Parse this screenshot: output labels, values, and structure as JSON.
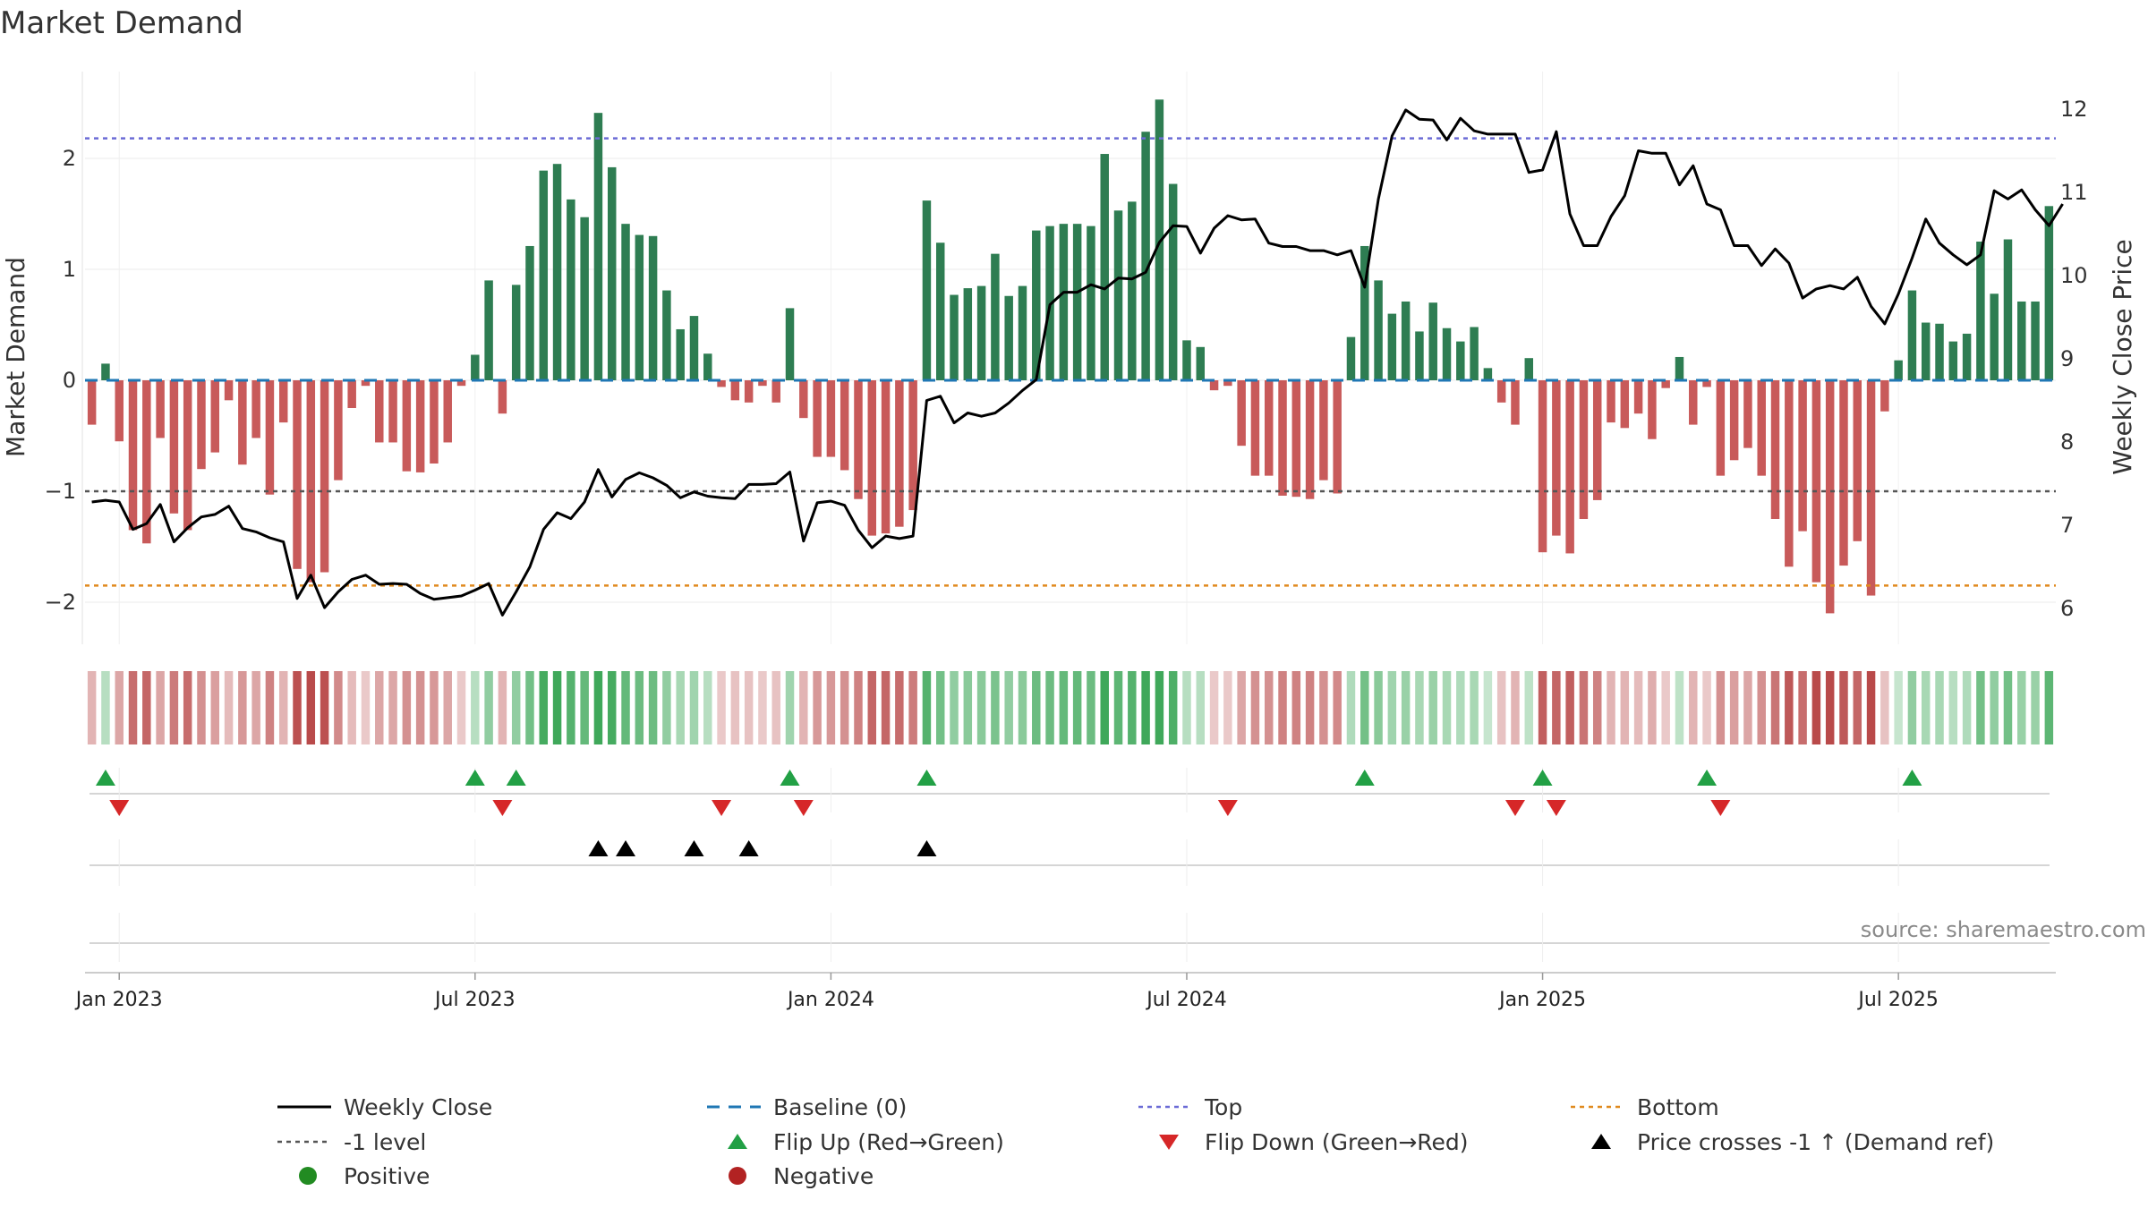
{
  "colors": {
    "positive_bar": "#2e7d52",
    "negative_bar": "#c85a5a",
    "close_line": "#000000",
    "baseline": "#1f77b4",
    "top_line": "#6b6bd6",
    "bottom_line": "#e08a1e",
    "minus1_line": "#555555",
    "flip_up": "#22a045",
    "flip_down": "#d62728",
    "cross_marker": "#000000",
    "legend_positive": "#228b22",
    "legend_negative": "#b22222"
  },
  "chart_data": {
    "type": "bar",
    "title": "Market Demand",
    "ylabel": "Market Demand",
    "ylabel_right": "Weekly Close Price",
    "ylim": [
      -2.4,
      2.85
    ],
    "ylim_right": [
      5.55,
      12.5
    ],
    "yticks": [
      -2,
      -1,
      0,
      1,
      2
    ],
    "yticklabels": [
      "−2",
      "−1",
      "0",
      "1",
      "2"
    ],
    "yticks_right": [
      6,
      7,
      8,
      9,
      10,
      11,
      12
    ],
    "yticklabels_right": [
      "6",
      "7",
      "8",
      "9",
      "10",
      "11",
      "12"
    ],
    "xticklabels": [
      "Jan 2023",
      "Jul 2023",
      "Jan 2024",
      "Jul 2024",
      "Jan 2025",
      "Jul 2025"
    ],
    "xtick_week_index": [
      2,
      28,
      54,
      80,
      106,
      132
    ],
    "reference_lines": {
      "top": 2.18,
      "bottom": -1.85,
      "minus_one": -1.0,
      "baseline": 0
    },
    "demand": [
      -0.4,
      0.15,
      -0.55,
      -1.35,
      -1.47,
      -0.52,
      -1.2,
      -1.35,
      -0.8,
      -0.65,
      -0.18,
      -0.76,
      -0.52,
      -1.03,
      -0.38,
      -1.7,
      -1.82,
      -1.73,
      -0.9,
      -0.25,
      -0.05,
      -0.56,
      -0.56,
      -0.82,
      -0.83,
      -0.75,
      -0.56,
      -0.05,
      0.23,
      0.9,
      -0.3,
      0.86,
      1.21,
      1.89,
      1.95,
      1.63,
      1.47,
      2.41,
      1.92,
      1.41,
      1.31,
      1.3,
      0.81,
      0.46,
      0.58,
      0.24,
      -0.06,
      -0.18,
      -0.2,
      -0.05,
      -0.2,
      0.65,
      -0.34,
      -0.69,
      -0.69,
      -0.81,
      -1.07,
      -1.4,
      -1.38,
      -1.32,
      -1.17,
      1.62,
      1.24,
      0.77,
      0.83,
      0.85,
      1.14,
      0.76,
      0.85,
      1.35,
      1.39,
      1.41,
      1.41,
      1.39,
      2.04,
      1.53,
      1.61,
      2.24,
      2.53,
      1.77,
      0.36,
      0.3,
      -0.09,
      -0.05,
      -0.59,
      -0.86,
      -0.86,
      -1.04,
      -1.05,
      -1.07,
      -0.9,
      -1.02,
      0.39,
      1.21,
      0.9,
      0.6,
      0.71,
      0.44,
      0.7,
      0.47,
      0.35,
      0.48,
      0.11,
      -0.2,
      -0.4,
      0.2,
      -1.55,
      -1.4,
      -1.56,
      -1.25,
      -1.08,
      -0.38,
      -0.43,
      -0.3,
      -0.53,
      -0.07,
      0.21,
      -0.4,
      -0.06,
      -0.86,
      -0.72,
      -0.61,
      -0.86,
      -1.25,
      -1.68,
      -1.36,
      -1.82,
      -2.1,
      -1.67,
      -1.45,
      -1.94,
      -0.28,
      0.18,
      0.81,
      0.52,
      0.51,
      0.35,
      0.42,
      1.25,
      0.78,
      1.27,
      0.71,
      0.71,
      1.57
    ],
    "weekly_close": [
      7.28,
      7.3,
      7.28,
      6.95,
      7.02,
      7.25,
      6.8,
      6.97,
      7.1,
      7.13,
      7.23,
      6.96,
      6.92,
      6.85,
      6.8,
      6.12,
      6.4,
      6.01,
      6.2,
      6.35,
      6.4,
      6.29,
      6.3,
      6.29,
      6.18,
      6.11,
      6.13,
      6.15,
      6.22,
      6.3,
      5.92,
      6.2,
      6.5,
      6.95,
      7.15,
      7.08,
      7.28,
      7.67,
      7.34,
      7.55,
      7.63,
      7.57,
      7.48,
      7.33,
      7.4,
      7.35,
      7.33,
      7.32,
      7.49,
      7.49,
      7.5,
      7.64,
      6.81,
      7.27,
      7.29,
      7.24,
      6.94,
      6.73,
      6.87,
      6.84,
      6.87,
      8.5,
      8.55,
      8.23,
      8.35,
      8.31,
      8.35,
      8.47,
      8.62,
      8.75,
      9.65,
      9.8,
      9.8,
      9.89,
      9.84,
      9.97,
      9.96,
      10.04,
      10.4,
      10.6,
      10.59,
      10.27,
      10.57,
      10.72,
      10.67,
      10.68,
      10.39,
      10.35,
      10.35,
      10.3,
      10.3,
      10.25,
      10.3,
      9.86,
      10.92,
      11.68,
      11.99,
      11.88,
      11.87,
      11.63,
      11.89,
      11.74,
      11.7,
      11.7,
      11.7,
      11.24,
      11.27,
      11.73,
      10.74,
      10.36,
      10.36,
      10.71,
      10.96,
      11.5,
      11.47,
      11.47,
      11.09,
      11.32,
      10.86,
      10.79,
      10.36,
      10.36,
      10.12,
      10.32,
      10.15,
      9.73,
      9.84,
      9.88,
      9.84,
      9.98,
      9.63,
      9.42,
      9.78,
      10.21,
      10.68,
      10.39,
      10.25,
      10.13,
      10.25,
      11.02,
      10.92,
      11.03,
      10.79,
      10.6,
      10.86
    ],
    "heatmap_strength": [
      0.25,
      0.2,
      0.35,
      0.75,
      0.8,
      0.35,
      0.65,
      0.75,
      0.5,
      0.4,
      0.2,
      0.45,
      0.35,
      0.6,
      0.25,
      0.95,
      1.0,
      0.95,
      0.55,
      0.2,
      0.1,
      0.35,
      0.35,
      0.5,
      0.5,
      0.45,
      0.35,
      0.1,
      0.2,
      0.45,
      0.25,
      0.45,
      0.65,
      0.95,
      1.0,
      0.85,
      0.75,
      1.1,
      0.95,
      0.75,
      0.7,
      0.7,
      0.45,
      0.3,
      0.35,
      0.2,
      0.05,
      0.15,
      0.15,
      0.05,
      0.15,
      0.35,
      0.25,
      0.45,
      0.45,
      0.5,
      0.6,
      0.8,
      0.8,
      0.75,
      0.65,
      0.85,
      0.65,
      0.45,
      0.5,
      0.5,
      0.6,
      0.45,
      0.5,
      0.7,
      0.7,
      0.75,
      0.75,
      0.7,
      1.0,
      0.8,
      0.85,
      1.1,
      1.2,
      0.9,
      0.2,
      0.2,
      0.1,
      0.05,
      0.35,
      0.5,
      0.5,
      0.6,
      0.6,
      0.6,
      0.5,
      0.55,
      0.25,
      0.65,
      0.5,
      0.35,
      0.4,
      0.3,
      0.4,
      0.3,
      0.25,
      0.3,
      0.1,
      0.15,
      0.25,
      0.15,
      0.85,
      0.8,
      0.85,
      0.7,
      0.6,
      0.25,
      0.25,
      0.2,
      0.3,
      0.05,
      0.15,
      0.25,
      0.05,
      0.5,
      0.4,
      0.35,
      0.5,
      0.7,
      0.9,
      0.75,
      1.0,
      1.1,
      0.9,
      0.8,
      1.0,
      0.15,
      0.1,
      0.45,
      0.3,
      0.3,
      0.2,
      0.25,
      0.65,
      0.45,
      0.65,
      0.4,
      0.4,
      0.8
    ],
    "flip_up_weeks": [
      1,
      28,
      31,
      51,
      61,
      93,
      106,
      118,
      133
    ],
    "flip_down_weeks": [
      2,
      30,
      46,
      52,
      83,
      104,
      107,
      119
    ],
    "cross_weeks": [
      37,
      39,
      44,
      48,
      61
    ],
    "legend": [
      {
        "key": "weekly_close",
        "label": "Weekly Close"
      },
      {
        "key": "baseline",
        "label": "Baseline (0)"
      },
      {
        "key": "top",
        "label": "Top"
      },
      {
        "key": "bottom",
        "label": "Bottom"
      },
      {
        "key": "minus_one",
        "label": "-1 level"
      },
      {
        "key": "flip_up",
        "label": "Flip Up (Red→Green)"
      },
      {
        "key": "flip_down",
        "label": "Flip Down (Green→Red)"
      },
      {
        "key": "cross",
        "label": "Price crosses -1 ↑ (Demand ref)"
      },
      {
        "key": "positive",
        "label": "Positive"
      },
      {
        "key": "negative",
        "label": "Negative"
      }
    ],
    "source": "source: sharemaestro.com"
  }
}
